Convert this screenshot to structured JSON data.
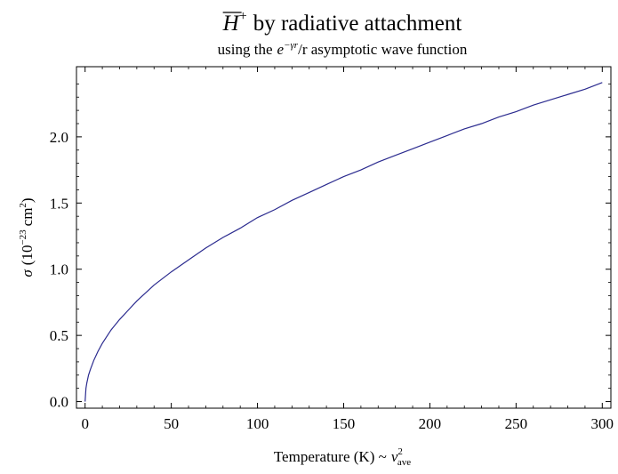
{
  "chart_data": {
    "type": "line",
    "title": {
      "symbol": "H",
      "superscript": "+",
      "overline": true,
      "rest": "by radiative attachment"
    },
    "subtitle": {
      "prefix": "using the",
      "math_base": "e",
      "math_superscript": "−γr",
      "suffix": "/r asymptotic wave function"
    },
    "xlabel": {
      "prefix": "Temperature (K) ~",
      "math_base": "v",
      "math_subscript": "ave",
      "math_superscript": "2"
    },
    "ylabel": {
      "symbol": "σ",
      "prefix": "(10",
      "exponent": "−23",
      "unit": "cm",
      "unit_exponent": "2",
      "suffix": ")"
    },
    "xlim": [
      -5,
      305
    ],
    "ylim": [
      -0.05,
      2.53
    ],
    "xticks": [
      0,
      50,
      100,
      150,
      200,
      250,
      300
    ],
    "yticks": [
      0.0,
      0.5,
      1.0,
      1.5,
      2.0
    ],
    "xtick_labels": [
      "0",
      "50",
      "100",
      "150",
      "200",
      "250",
      "300"
    ],
    "ytick_labels": [
      "0.0",
      "0.5",
      "1.0",
      "1.5",
      "2.0"
    ],
    "grid": false,
    "series": [
      {
        "color": "#2b2b8f",
        "x": [
          0,
          0.5,
          1,
          2,
          3,
          5,
          7.5,
          10,
          15,
          20,
          25,
          30,
          40,
          50,
          60,
          70,
          80,
          90,
          100,
          110,
          120,
          130,
          140,
          150,
          160,
          170,
          180,
          190,
          200,
          210,
          220,
          230,
          240,
          250,
          260,
          270,
          280,
          290,
          300
        ],
        "y": [
          0.0,
          0.1,
          0.14,
          0.2,
          0.24,
          0.31,
          0.38,
          0.44,
          0.54,
          0.62,
          0.69,
          0.76,
          0.88,
          0.98,
          1.07,
          1.16,
          1.24,
          1.31,
          1.39,
          1.45,
          1.52,
          1.58,
          1.64,
          1.7,
          1.75,
          1.81,
          1.86,
          1.91,
          1.96,
          2.01,
          2.06,
          2.1,
          2.15,
          2.19,
          2.24,
          2.28,
          2.32,
          2.36,
          2.41
        ]
      }
    ]
  }
}
